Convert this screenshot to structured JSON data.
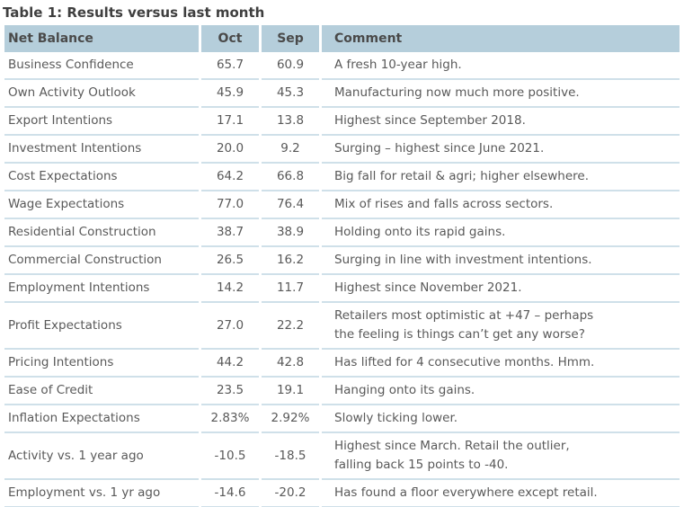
{
  "title": "Table 1: Results versus last month",
  "colors": {
    "header_bg": "#b5cedb",
    "divider": "#cfe0e9",
    "title_text": "#3f3f3f",
    "header_text": "#4a4a4a",
    "body_text": "#595959"
  },
  "table": {
    "columns": [
      "Net Balance",
      "Oct",
      "Sep",
      "Comment"
    ],
    "rows": [
      {
        "label": "Business Confidence",
        "oct": "65.7",
        "sep": "60.9",
        "comment": "A fresh 10-year high."
      },
      {
        "label": "Own Activity Outlook",
        "oct": "45.9",
        "sep": "45.3",
        "comment": "Manufacturing now much more positive."
      },
      {
        "label": "Export Intentions",
        "oct": "17.1",
        "sep": "13.8",
        "comment": "Highest since September 2018."
      },
      {
        "label": "Investment Intentions",
        "oct": "20.0",
        "sep": "9.2",
        "comment": "Surging – highest since June 2021."
      },
      {
        "label": "Cost Expectations",
        "oct": "64.2",
        "sep": "66.8",
        "comment": "Big fall for retail & agri; higher elsewhere."
      },
      {
        "label": "Wage Expectations",
        "oct": "77.0",
        "sep": "76.4",
        "comment": "Mix of rises and falls across sectors."
      },
      {
        "label": "Residential Construction",
        "oct": "38.7",
        "sep": "38.9",
        "comment": "Holding onto its rapid gains."
      },
      {
        "label": "Commercial Construction",
        "oct": "26.5",
        "sep": "16.2",
        "comment": "Surging in line with investment intentions."
      },
      {
        "label": "Employment Intentions",
        "oct": "14.2",
        "sep": "11.7",
        "comment": "Highest since November 2021."
      },
      {
        "label": "Profit Expectations",
        "oct": "27.0",
        "sep": "22.2",
        "comment": "Retailers most optimistic at +47 – perhaps\nthe feeling is things can’t get any worse?"
      },
      {
        "label": "Pricing Intentions",
        "oct": "44.2",
        "sep": "42.8",
        "comment": "Has lifted for 4 consecutive months. Hmm."
      },
      {
        "label": "Ease of Credit",
        "oct": "23.5",
        "sep": "19.1",
        "comment": "Hanging onto its gains."
      },
      {
        "label": "Inflation Expectations",
        "oct": "2.83%",
        "sep": "2.92%",
        "comment": "Slowly ticking lower."
      },
      {
        "label": "Activity vs. 1 year ago",
        "oct": "-10.5",
        "sep": "-18.5",
        "comment": "Highest since March. Retail the outlier,\nfalling back 15 points to -40."
      },
      {
        "label": "Employment vs. 1 yr ago",
        "oct": "-14.6",
        "sep": "-20.2",
        "comment": "Has found a floor everywhere except retail."
      }
    ]
  }
}
